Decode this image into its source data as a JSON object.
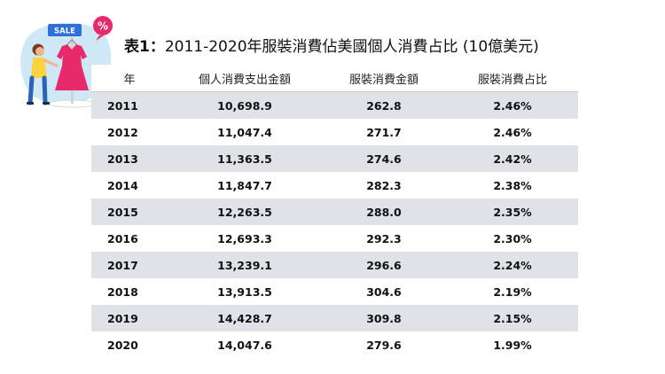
{
  "illustration": {
    "sign_text": "SALE",
    "badge_text": "%"
  },
  "title": {
    "lead": "表1：",
    "text": "2011-2020年服裝消費佔美國個人消費占比 (10億美元)"
  },
  "colors": {
    "row_band": "#dfe3e7",
    "accent_pink": "#e8296b",
    "sign_blue": "#2f6fdb"
  },
  "chart_data": {
    "type": "table",
    "title": "表1：2011-2020年服裝消費佔美國個人消費占比 (10億美元)",
    "columns": [
      "年",
      "個人消費支出金額",
      "服裝消費金額",
      "服裝消費占比"
    ],
    "rows": [
      [
        "2011",
        "10,698.9",
        "262.8",
        "2.46%"
      ],
      [
        "2012",
        "11,047.4",
        "271.7",
        "2.46%"
      ],
      [
        "2013",
        "11,363.5",
        "274.6",
        "2.42%"
      ],
      [
        "2014",
        "11,847.7",
        "282.3",
        "2.38%"
      ],
      [
        "2015",
        "12,263.5",
        "288.0",
        "2.35%"
      ],
      [
        "2016",
        "12,693.3",
        "292.3",
        "2.30%"
      ],
      [
        "2017",
        "13,239.1",
        "296.6",
        "2.24%"
      ],
      [
        "2018",
        "13,913.5",
        "304.6",
        "2.19%"
      ],
      [
        "2019",
        "14,428.7",
        "309.8",
        "2.15%"
      ],
      [
        "2020",
        "14,047.6",
        "279.6",
        "1.99%"
      ]
    ]
  }
}
